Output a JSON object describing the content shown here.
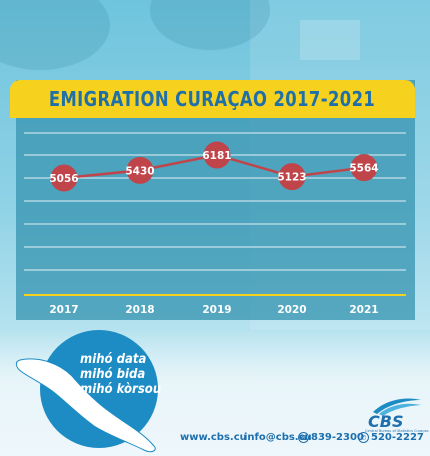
{
  "chart_data": {
    "type": "line",
    "title": "EMIGRATION CURAÇAO 2017-2021",
    "categories": [
      "2017",
      "2018",
      "2019",
      "2020",
      "2021"
    ],
    "values": [
      5056,
      5430,
      6181,
      5123,
      5564
    ],
    "xlabel": "",
    "ylabel": "",
    "grid": true,
    "legend": "none",
    "colors": {
      "line": "#c0454b",
      "marker": "#c0454b",
      "label": "#ffffff",
      "axis": "#f6d21f",
      "grid": "#ffffff"
    }
  },
  "slogan": {
    "line1": "mihó data",
    "line2": "mihó bida",
    "line3": "mihó kòrsou"
  },
  "footer": {
    "website": "www.cbs.cu",
    "email": "info@cbs.cu",
    "phone1": "839-2300",
    "phone2": "520-2227"
  },
  "logo": {
    "text": "CBS",
    "subtitle": "Central Bureau of Statistics Curaçao"
  }
}
